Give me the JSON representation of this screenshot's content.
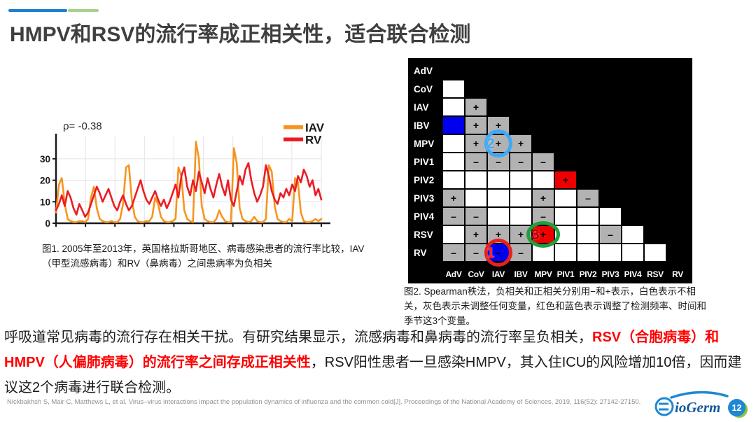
{
  "accent_bar": {
    "blue": "#1B7FD4",
    "green": "#A8D08D"
  },
  "title": "HMPV和RSV的流行率成正相关性，适合联合检测",
  "chart_data": {
    "type": "line",
    "correlation_label": "ρ= -0.38",
    "ylim": [
      0,
      40
    ],
    "yticks": [
      0,
      10,
      20,
      30
    ],
    "x_tick_count": 10,
    "grid": true,
    "legend_position": "top-right",
    "series": [
      {
        "name": "IAV",
        "color": "#F7941E",
        "values": [
          5,
          18,
          21,
          9,
          2,
          1,
          0.5,
          0.5,
          1,
          1,
          0.5,
          2,
          12,
          17,
          7,
          2,
          1,
          0.5,
          0.5,
          1,
          0.5,
          0.5,
          2,
          9,
          26,
          27,
          11,
          3,
          1,
          0.5,
          0.5,
          1,
          1,
          3,
          12,
          9,
          3,
          1,
          0.5,
          0.5,
          1,
          2,
          26,
          22,
          6,
          2,
          1,
          0.5,
          38,
          30,
          8,
          2,
          1,
          0.5,
          0.5,
          2,
          6,
          3,
          1,
          0.5,
          0.5,
          35,
          28,
          7,
          2,
          1,
          0.5,
          1,
          3,
          1,
          0.5,
          0.5,
          2,
          27,
          24,
          8,
          2,
          1,
          0.5,
          0.5,
          2,
          1,
          21,
          19,
          5,
          1,
          0.5,
          0.5,
          1,
          2,
          1,
          2
        ]
      },
      {
        "name": "RV",
        "color": "#EC1C24",
        "values": [
          6,
          9,
          13,
          8,
          15,
          12,
          7,
          4,
          9,
          6,
          3,
          5,
          9,
          13,
          17,
          14,
          10,
          13,
          16,
          12,
          8,
          6,
          10,
          13,
          9,
          6,
          8,
          12,
          16,
          20,
          15,
          11,
          9,
          12,
          15,
          11,
          8,
          11,
          7,
          10,
          14,
          18,
          12,
          22,
          26,
          17,
          13,
          20,
          15,
          24,
          19,
          14,
          21,
          16,
          12,
          18,
          23,
          17,
          13,
          20,
          11,
          8,
          15,
          22,
          18,
          25,
          28,
          20,
          14,
          10,
          13,
          17,
          27,
          22,
          15,
          11,
          9,
          14,
          12,
          16,
          13,
          18,
          15,
          22,
          19,
          25,
          22,
          17,
          20,
          13,
          16,
          11
        ]
      }
    ]
  },
  "figure1": {
    "caption": "图1. 2005年至2013年，英国格拉斯哥地区、病毒感染患者的流行率比较，IAV（甲型流感病毒）和RV（鼻病毒）之间患病率为负相关"
  },
  "matrix": {
    "row_labels": [
      "AdV",
      "CoV",
      "IAV",
      "IBV",
      "MPV",
      "PIV1",
      "PIV2",
      "PIV3",
      "PIV4",
      "RSV",
      "RV"
    ],
    "col_labels": [
      "AdV",
      "CoV",
      "IAV",
      "IBV",
      "MPV",
      "PIV1",
      "PIV2",
      "PIV3",
      "PIV4",
      "RSV",
      "RV"
    ],
    "cell_colors": {
      "w": "#FFFFFF",
      "g": "#B2B2B2",
      "b": "#0000EE",
      "r": "#EE0000"
    },
    "rows": [
      [],
      [
        "w"
      ],
      [
        "w",
        "g+"
      ],
      [
        "b",
        "g+",
        "g+"
      ],
      [
        "w",
        "g+",
        "g+",
        "g+"
      ],
      [
        "w",
        "g-",
        "g-",
        "g-",
        "g-"
      ],
      [
        "w",
        "w",
        "w",
        "w",
        "w",
        "r+"
      ],
      [
        "g+",
        "w",
        "w",
        "w",
        "g+",
        "w",
        "g-"
      ],
      [
        "g-",
        "g-",
        "w",
        "w",
        "g-",
        "w",
        "w",
        "w"
      ],
      [
        "w",
        "g+",
        "g+",
        "g+",
        "r+",
        "w",
        "w",
        "g-",
        "w"
      ],
      [
        "g-",
        "g-",
        "b-",
        "g-",
        "w",
        "w",
        "w",
        "w",
        "w",
        "w"
      ]
    ],
    "annotations": [
      {
        "label": "2",
        "row": 4,
        "col": 2,
        "shape": "circle",
        "ring_color": "#3FA9F5",
        "label_color": "#3FA9F5"
      },
      {
        "label": "3",
        "row": 9,
        "col": 4,
        "shape": "ellipse",
        "ring_color": "#1FA03C",
        "label_color": "#B00000"
      },
      {
        "label": "1",
        "row": 10,
        "col": 2,
        "shape": "circle",
        "ring_color": "#E8201C",
        "label_color": "#FF2A1E"
      }
    ]
  },
  "figure2": {
    "caption": "图2. Spearman秩法，负相关和正相关分别用−和+表示，白色表示不相关，灰色表示未调整任何变量，红色和蓝色表示调整了检测频率、时间和季节这3个变量。"
  },
  "body": {
    "segments": [
      {
        "text": "呼吸道常见病毒的流行存在相关干扰。有研究结果显示，流感病毒和鼻病毒的流行率呈负相关，",
        "red": false
      },
      {
        "text": "RSV（合胞病毒）和HMPV（人偏肺病毒）的流行率之间存成正相关性",
        "red": true
      },
      {
        "text": "，RSV阳性患者一旦感染HMPV，其入住ICU的风险增加10倍，因而建议这2个病毒进行联合检测。",
        "red": false
      }
    ]
  },
  "citation": "Nickbakhsh S, Mair C, Matthews L, et al. Virus–virus interactions impact the population dynamics of influenza and the common cold[J]. Proceedings of the National Academy of Sciences, 2019, 116(52): 27142-27150.",
  "footer": {
    "page_number": "12",
    "logo_text": "ioGerm",
    "logo_color": "#1E88D2",
    "badge_blue": "#1E88D2",
    "badge_green": "#8DC63F"
  }
}
